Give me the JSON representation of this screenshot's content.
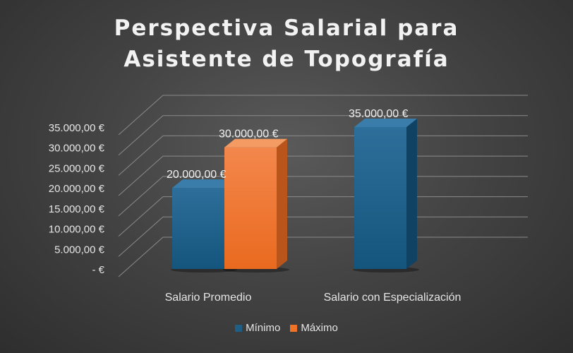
{
  "chart_data": {
    "type": "bar",
    "title": "Perspectiva Salarial para Asistente de Topografía",
    "categories": [
      "Salario Promedio",
      "Salario con Especialización"
    ],
    "series": [
      {
        "name": "Mínimo",
        "color": "#1f5f86",
        "values": [
          20000,
          35000
        ]
      },
      {
        "name": "Máximo",
        "color": "#f07226",
        "values": [
          30000,
          null
        ]
      }
    ],
    "data_labels": [
      [
        "20.000,00 €",
        "35.000,00 €"
      ],
      [
        "30.000,00 €",
        ""
      ]
    ],
    "ylim": [
      0,
      35000
    ],
    "yticks": [
      0,
      5000,
      10000,
      15000,
      20000,
      25000,
      30000,
      35000
    ],
    "ytick_labels": [
      "-  €",
      "5.000,00 €",
      "10.000,00 €",
      "15.000,00 €",
      "20.000,00 €",
      "25.000,00 €",
      "30.000,00 €",
      "35.000,00 €"
    ],
    "grid": true,
    "legend_position": "bottom",
    "style": "3d-clustered-column"
  }
}
